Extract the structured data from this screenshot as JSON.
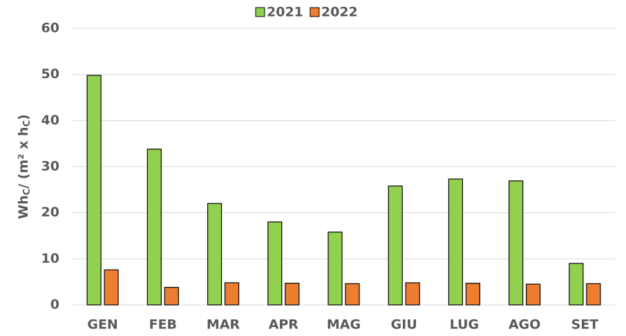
{
  "chart_data": {
    "type": "bar",
    "y_label_parts": [
      "Wh",
      "C",
      "/ (m² x h",
      "C",
      ")"
    ],
    "categories": [
      "GEN",
      "FEB",
      "MAR",
      "APR",
      "MAG",
      "GIU",
      "LUG",
      "AGO",
      "SET"
    ],
    "series": [
      {
        "name": "2021",
        "color": "#92d050",
        "values": [
          49.8,
          33.8,
          22,
          18,
          15.8,
          25.8,
          27.3,
          26.9,
          9
        ]
      },
      {
        "name": "2022",
        "color": "#ed7d31",
        "values": [
          7.6,
          3.8,
          4.8,
          4.7,
          4.6,
          4.8,
          4.7,
          4.5,
          4.6
        ]
      }
    ],
    "ylim": [
      0,
      60
    ],
    "yticks": [
      0,
      10,
      20,
      30,
      40,
      50,
      60
    ],
    "grid": true,
    "legend": "top"
  }
}
